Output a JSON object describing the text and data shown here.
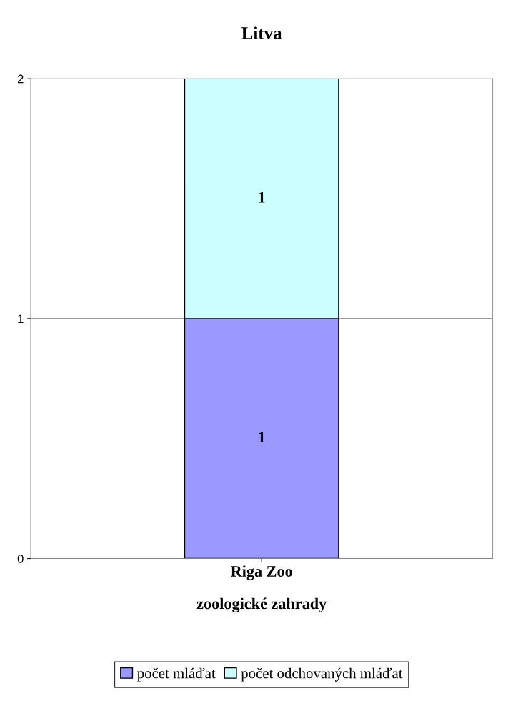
{
  "chart_data": {
    "type": "bar",
    "title": "Litva",
    "xlabel": "zoologické zahrady",
    "categories": [
      "Riga Zoo"
    ],
    "series": [
      {
        "name": "počet mláďat",
        "color": "#9999ff",
        "values": [
          1
        ]
      },
      {
        "name": "počet odchovaných mláďat",
        "color": "#ccffff",
        "values": [
          1
        ]
      }
    ],
    "stacked": true,
    "ylim": [
      0,
      2
    ],
    "yticks": [
      0,
      1,
      2
    ],
    "grid": "y",
    "legend": "bottom",
    "data_labels": true
  }
}
